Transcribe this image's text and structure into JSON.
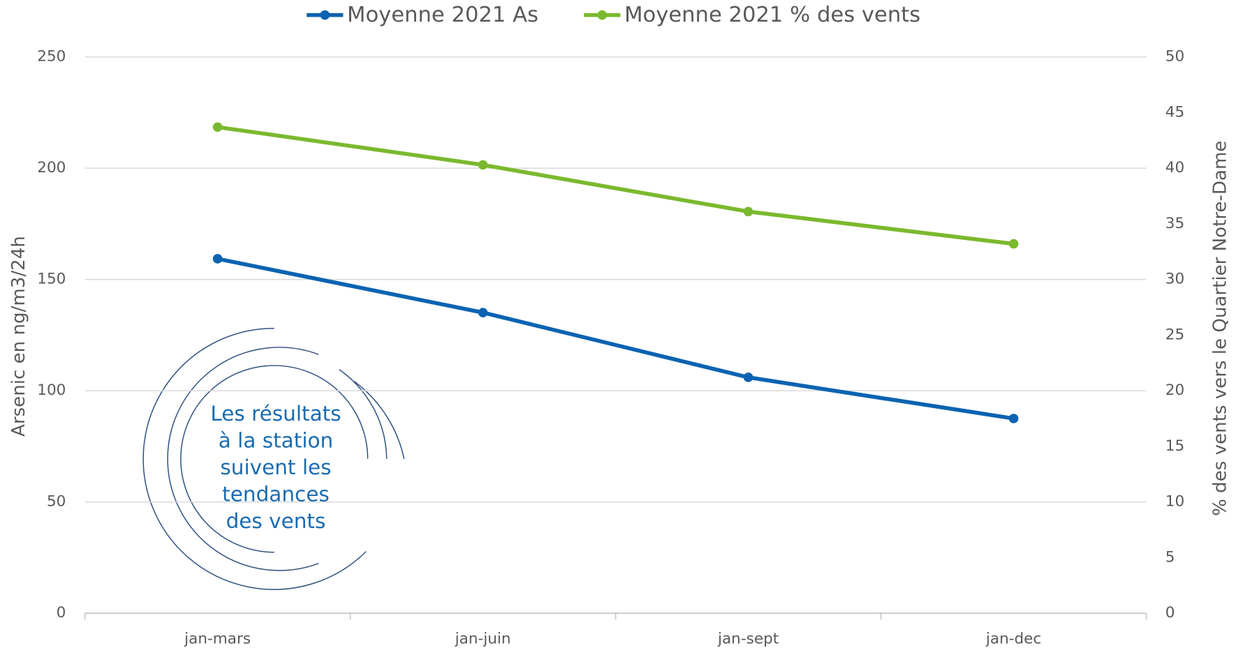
{
  "chart_data": {
    "type": "line",
    "categories": [
      "jan-mars",
      "jan-juin",
      "jan-sept",
      "jan-dec"
    ],
    "series": [
      {
        "name": "Moyenne 2021 As",
        "color": "#0b63b1",
        "values": [
          159.3,
          135.1,
          106,
          87.5
        ]
      },
      {
        "name": "Moyenne 2021 % des vents",
        "color": "#7ab92e",
        "axis": "y2",
        "values": [
          43.7,
          40.3,
          36.1,
          33.2
        ]
      }
    ],
    "ylabel": "Arsenic en ng/m3/24h",
    "y2label": "% des vents vers le Quartier Notre-Dame",
    "ylim": [
      0,
      250
    ],
    "yticks": [
      0,
      50,
      100,
      150,
      200,
      250
    ],
    "y2lim": [
      0,
      50
    ],
    "y2ticks": [
      0,
      5,
      10,
      15,
      20,
      25,
      30,
      35,
      40,
      45,
      50
    ],
    "grid": true,
    "legend": "top",
    "annotation": [
      "Les résultats",
      "à la station",
      "suivent les",
      "tendances",
      "des vents"
    ]
  }
}
